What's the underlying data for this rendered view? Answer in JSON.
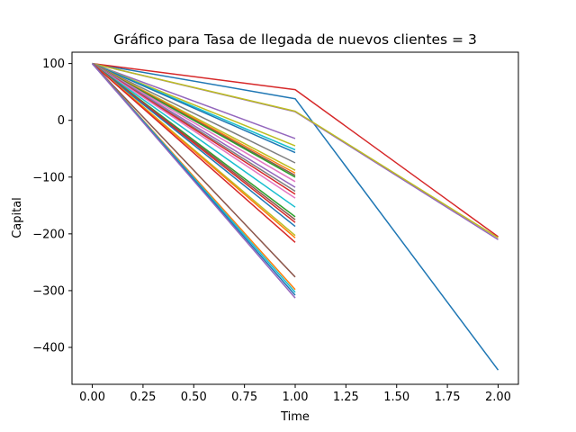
{
  "chart_data": {
    "type": "line",
    "title": "Gráfico para Tasa de llegada de nuevos clientes = 3",
    "xlabel": "Time",
    "ylabel": "Capital",
    "xlim": [
      -0.1,
      2.1
    ],
    "ylim": [
      -465,
      120
    ],
    "xticks": [
      0.0,
      0.25,
      0.5,
      0.75,
      1.0,
      1.25,
      1.5,
      1.75,
      2.0
    ],
    "xtick_labels": [
      "0.00",
      "0.25",
      "0.50",
      "0.75",
      "1.00",
      "1.25",
      "1.50",
      "1.75",
      "2.00"
    ],
    "yticks": [
      100,
      0,
      -100,
      -200,
      -300,
      -400
    ],
    "ytick_labels": [
      "100",
      "0",
      "−100",
      "−200",
      "−300",
      "−400"
    ],
    "grid": false,
    "series": [
      {
        "x": [
          0,
          1,
          2
        ],
        "y": [
          100,
          38,
          -440
        ],
        "color": "#1f77b4"
      },
      {
        "x": [
          0,
          1,
          2
        ],
        "y": [
          100,
          54,
          -205
        ],
        "color": "#d62728"
      },
      {
        "x": [
          0,
          1,
          2
        ],
        "y": [
          100,
          15,
          -210
        ],
        "color": "#9467bd"
      },
      {
        "x": [
          0,
          1,
          2
        ],
        "y": [
          100,
          16,
          -207
        ],
        "color": "#bcbd22"
      },
      {
        "x": [
          0,
          1
        ],
        "y": [
          100,
          -32
        ],
        "color": "#9467bd"
      },
      {
        "x": [
          0,
          1
        ],
        "y": [
          100,
          -45
        ],
        "color": "#bcbd22"
      },
      {
        "x": [
          0,
          1
        ],
        "y": [
          100,
          -52
        ],
        "color": "#17becf"
      },
      {
        "x": [
          0,
          1
        ],
        "y": [
          100,
          -57
        ],
        "color": "#1f77b4"
      },
      {
        "x": [
          0,
          1
        ],
        "y": [
          100,
          -75
        ],
        "color": "#7f7f7f"
      },
      {
        "x": [
          0,
          1
        ],
        "y": [
          100,
          -88
        ],
        "color": "#bcbd22"
      },
      {
        "x": [
          0,
          1
        ],
        "y": [
          100,
          -93
        ],
        "color": "#ff7f0e"
      },
      {
        "x": [
          0,
          1
        ],
        "y": [
          100,
          -97
        ],
        "color": "#8c564b"
      },
      {
        "x": [
          0,
          1
        ],
        "y": [
          100,
          -100
        ],
        "color": "#2ca02c"
      },
      {
        "x": [
          0,
          1
        ],
        "y": [
          100,
          -108
        ],
        "color": "#e377c2"
      },
      {
        "x": [
          0,
          1
        ],
        "y": [
          100,
          -118
        ],
        "color": "#9467bd"
      },
      {
        "x": [
          0,
          1
        ],
        "y": [
          100,
          -125
        ],
        "color": "#7f7f7f"
      },
      {
        "x": [
          0,
          1
        ],
        "y": [
          100,
          -130
        ],
        "color": "#d62728"
      },
      {
        "x": [
          0,
          1
        ],
        "y": [
          100,
          -137
        ],
        "color": "#e377c2"
      },
      {
        "x": [
          0,
          1
        ],
        "y": [
          100,
          -153
        ],
        "color": "#17becf"
      },
      {
        "x": [
          0,
          1
        ],
        "y": [
          100,
          -170
        ],
        "color": "#2ca02c"
      },
      {
        "x": [
          0,
          1
        ],
        "y": [
          100,
          -175
        ],
        "color": "#8c564b"
      },
      {
        "x": [
          0,
          1
        ],
        "y": [
          100,
          -180
        ],
        "color": "#d62728"
      },
      {
        "x": [
          0,
          1
        ],
        "y": [
          100,
          -187
        ],
        "color": "#1f77b4"
      },
      {
        "x": [
          0,
          1
        ],
        "y": [
          100,
          -203
        ],
        "color": "#bcbd22"
      },
      {
        "x": [
          0,
          1
        ],
        "y": [
          100,
          -207
        ],
        "color": "#ff7f0e"
      },
      {
        "x": [
          0,
          1
        ],
        "y": [
          100,
          -215
        ],
        "color": "#d62728"
      },
      {
        "x": [
          0,
          1
        ],
        "y": [
          100,
          -276
        ],
        "color": "#8c564b"
      },
      {
        "x": [
          0,
          1
        ],
        "y": [
          100,
          -298
        ],
        "color": "#ff7f0e"
      },
      {
        "x": [
          0,
          1
        ],
        "y": [
          100,
          -303
        ],
        "color": "#17becf"
      },
      {
        "x": [
          0,
          1
        ],
        "y": [
          100,
          -308
        ],
        "color": "#1f77b4"
      },
      {
        "x": [
          0,
          1
        ],
        "y": [
          100,
          -313
        ],
        "color": "#9467bd"
      }
    ]
  }
}
